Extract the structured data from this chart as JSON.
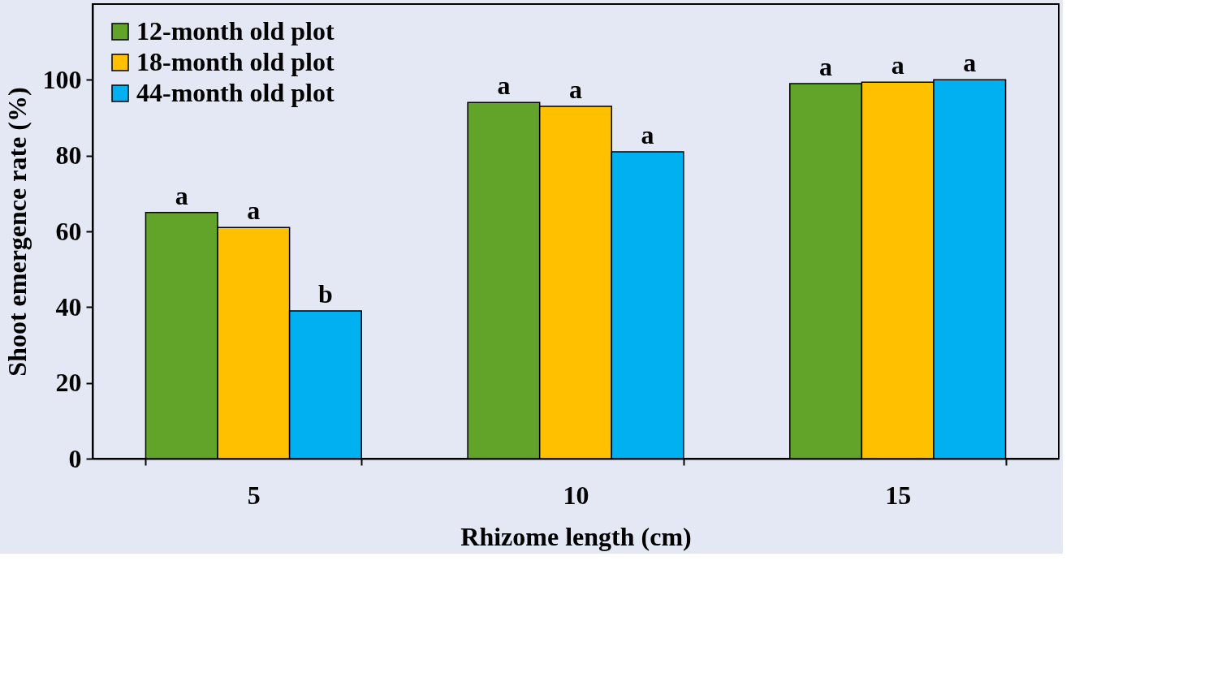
{
  "chart_data": {
    "type": "bar",
    "xlabel": "Rhizome length (cm)",
    "ylabel": "Shoot emergence rate (%)",
    "categories": [
      "5",
      "10",
      "15"
    ],
    "series": [
      {
        "name": "12-month old plot",
        "color": "#62a329",
        "values": [
          65,
          94,
          99
        ],
        "value_labels": [
          "a",
          "a",
          "a"
        ]
      },
      {
        "name": "18-month old plot",
        "color": "#ffc000",
        "values": [
          61,
          93,
          99.4
        ],
        "value_labels": [
          "a",
          "a",
          "a"
        ]
      },
      {
        "name": "44-month old plot",
        "color": "#00b0f0",
        "values": [
          39,
          81,
          100
        ],
        "value_labels": [
          "b",
          "a",
          "a"
        ]
      }
    ],
    "ylim": [
      0,
      120
    ],
    "yticks": [
      0,
      20,
      40,
      60,
      80,
      100
    ],
    "grid": false,
    "legend": "top left"
  }
}
